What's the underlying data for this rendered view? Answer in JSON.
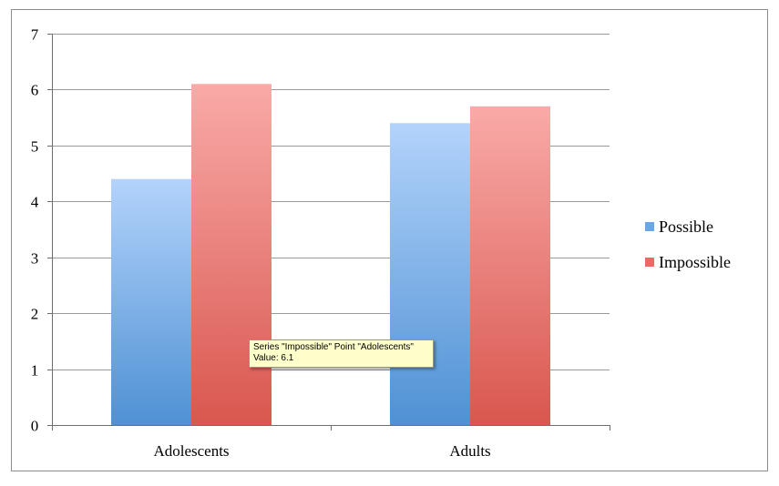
{
  "chart_data": {
    "type": "bar",
    "categories": [
      "Adolescents",
      "Adults"
    ],
    "series": [
      {
        "name": "Possible",
        "values": [
          4.4,
          5.4
        ]
      },
      {
        "name": "Impossible",
        "values": [
          6.1,
          5.7
        ]
      }
    ],
    "title": "",
    "xlabel": "",
    "ylabel": "",
    "ylim": [
      0,
      7
    ],
    "yticks": [
      "0",
      "1",
      "2",
      "3",
      "4",
      "5",
      "6",
      "7"
    ],
    "grid": "horizontal",
    "legend_position": "right"
  },
  "colors": {
    "possible_top": "#b3d3fb",
    "possible_bottom": "#4f91d4",
    "impossible_top": "#f9aaa8",
    "impossible_bottom": "#d9574f",
    "gridline": "#9a9a9a"
  },
  "legend": [
    {
      "label": "Possible",
      "color": "#6aa5e6"
    },
    {
      "label": "Impossible",
      "color": "#e86a64"
    }
  ],
  "tooltip": {
    "line1": "Series \"Impossible\" Point \"Adolescents\"",
    "line2": "Value: 6.1"
  }
}
